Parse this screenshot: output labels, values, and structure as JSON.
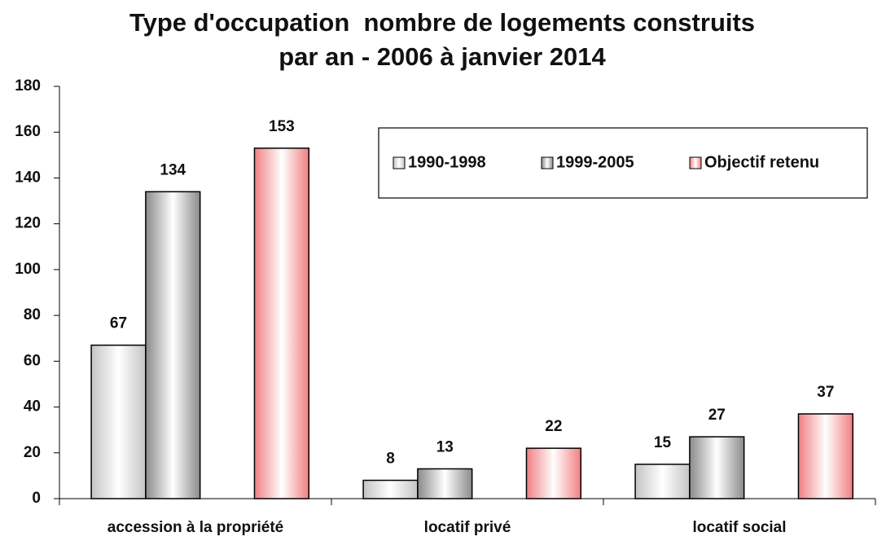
{
  "chart_data": {
    "type": "bar",
    "title": [
      "Type d'occupation  nombre de logements construits",
      "par an - 2006 à janvier 2014"
    ],
    "categories": [
      "accession à la propriété",
      "locatif privé",
      "locatif social"
    ],
    "series": [
      {
        "name": "1990-1998",
        "color": "#c4c4c4",
        "values": [
          67,
          8,
          15
        ]
      },
      {
        "name": "1999-2005",
        "color": "#8a8a8a",
        "values": [
          134,
          13,
          27
        ]
      },
      {
        "name": "Objectif retenu",
        "color": "#f07f82",
        "values": [
          153,
          22,
          37
        ]
      }
    ],
    "ylim": [
      0,
      180
    ],
    "yticks": [
      0,
      20,
      40,
      60,
      80,
      100,
      120,
      140,
      160,
      180
    ],
    "grid": false,
    "legend": "top-right"
  }
}
